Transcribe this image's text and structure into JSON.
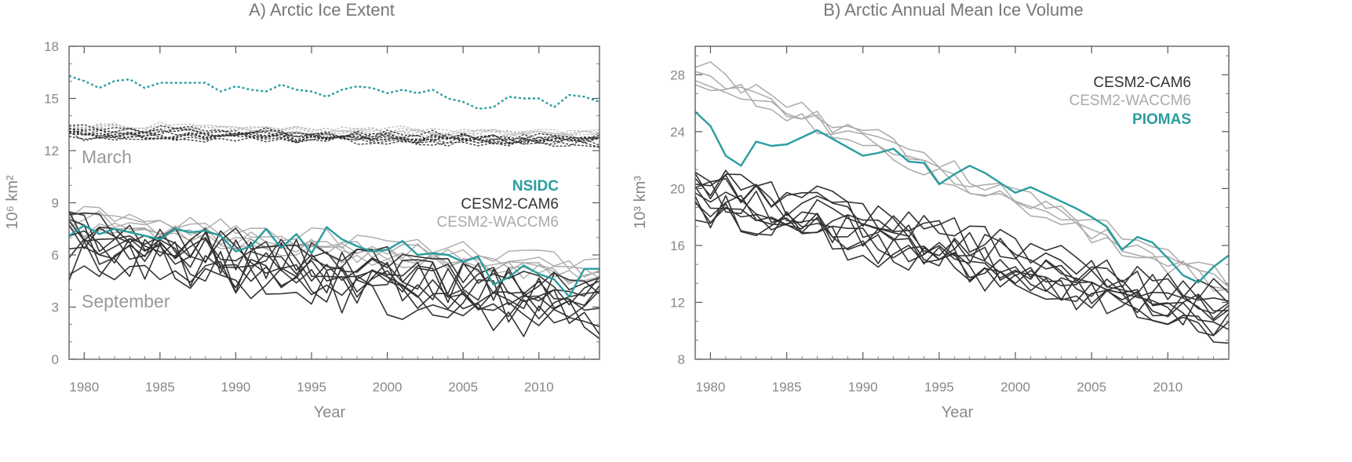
{
  "chart_data": [
    {
      "type": "line",
      "title": "A) Arctic Ice Extent",
      "xlabel": "Year",
      "ylabel": "10⁶ km²",
      "xlim": [
        1979,
        2014
      ],
      "ylim": [
        0,
        18
      ],
      "xticks": [
        1980,
        1985,
        1990,
        1995,
        2000,
        2005,
        2010
      ],
      "yticks": [
        0,
        3,
        6,
        9,
        12,
        15,
        18
      ],
      "grid": false,
      "colors": {
        "observed": "#2a9d9f",
        "cam6": "#333333",
        "waccm6": "#aaaaaa"
      },
      "annotations": [
        {
          "text": "March",
          "x": 1979.8,
          "y": 11.5
        },
        {
          "text": "September",
          "x": 1979.8,
          "y": 3.2
        }
      ],
      "legend": {
        "placement": "right",
        "entries": [
          {
            "label": "NSIDC",
            "color": "#2a9d9f"
          },
          {
            "label": "CESM2-CAM6",
            "color": "#333333"
          },
          {
            "label": "CESM2-WACCM6",
            "color": "#aaaaaa"
          }
        ]
      },
      "x": [
        1979,
        1980,
        1981,
        1982,
        1983,
        1984,
        1985,
        1986,
        1987,
        1988,
        1989,
        1990,
        1991,
        1992,
        1993,
        1994,
        1995,
        1996,
        1997,
        1998,
        1999,
        2000,
        2001,
        2002,
        2003,
        2004,
        2005,
        2006,
        2007,
        2008,
        2009,
        2010,
        2011,
        2012,
        2013,
        2014
      ],
      "series": [
        {
          "name": "NSIDC",
          "group": "observed",
          "month": "March",
          "style": "dotted",
          "values": [
            16.3,
            16.0,
            15.6,
            16.0,
            16.1,
            15.6,
            15.9,
            15.9,
            15.9,
            15.9,
            15.4,
            15.7,
            15.5,
            15.4,
            15.8,
            15.5,
            15.4,
            15.1,
            15.5,
            15.7,
            15.6,
            15.3,
            15.5,
            15.3,
            15.5,
            15.0,
            14.8,
            14.4,
            14.5,
            15.1,
            15.0,
            15.0,
            14.5,
            15.2,
            15.1,
            14.8
          ]
        },
        {
          "name": "NSIDC",
          "group": "observed",
          "month": "September",
          "style": "solid",
          "values": [
            7.1,
            7.7,
            7.2,
            7.5,
            7.3,
            7.1,
            6.9,
            7.5,
            7.3,
            7.4,
            7.1,
            6.2,
            6.5,
            7.5,
            6.4,
            7.2,
            6.1,
            7.6,
            6.9,
            6.5,
            6.2,
            6.3,
            6.8,
            6.0,
            6.1,
            6.0,
            5.6,
            5.9,
            4.3,
            4.7,
            5.4,
            4.9,
            4.6,
            3.6,
            5.2,
            5.2
          ]
        }
      ]
    },
    {
      "type": "line",
      "title": "B) Arctic Annual Mean Ice Volume",
      "xlabel": "Year",
      "ylabel": "10³ km³",
      "xlim": [
        1979,
        2014
      ],
      "ylim": [
        8,
        30
      ],
      "xticks": [
        1980,
        1985,
        1990,
        1995,
        2000,
        2005,
        2010
      ],
      "yticks": [
        8,
        12,
        16,
        20,
        24,
        28
      ],
      "grid": false,
      "colors": {
        "observed": "#2a9d9f",
        "cam6": "#333333",
        "waccm6": "#aaaaaa"
      },
      "legend": {
        "placement": "top-right",
        "entries": [
          {
            "label": "CESM2-CAM6",
            "color": "#333333"
          },
          {
            "label": "CESM2-WACCM6",
            "color": "#aaaaaa"
          },
          {
            "label": "PIOMAS",
            "color": "#2a9d9f"
          }
        ]
      },
      "x": [
        1979,
        1980,
        1981,
        1982,
        1983,
        1984,
        1985,
        1986,
        1987,
        1988,
        1989,
        1990,
        1991,
        1992,
        1993,
        1994,
        1995,
        1996,
        1997,
        1998,
        1999,
        2000,
        2001,
        2002,
        2003,
        2004,
        2005,
        2006,
        2007,
        2008,
        2009,
        2010,
        2011,
        2012,
        2013,
        2014
      ],
      "series": [
        {
          "name": "PIOMAS",
          "group": "observed",
          "values": [
            25.4,
            24.4,
            22.3,
            21.6,
            23.3,
            23.0,
            23.1,
            23.6,
            24.1,
            23.5,
            22.9,
            22.3,
            22.5,
            22.8,
            21.9,
            21.8,
            20.3,
            21.0,
            21.6,
            21.1,
            20.4,
            19.7,
            20.1,
            19.6,
            19.1,
            18.6,
            18.0,
            17.3,
            15.7,
            16.6,
            16.2,
            15.1,
            13.9,
            13.4,
            14.5,
            15.3
          ]
        }
      ]
    }
  ]
}
